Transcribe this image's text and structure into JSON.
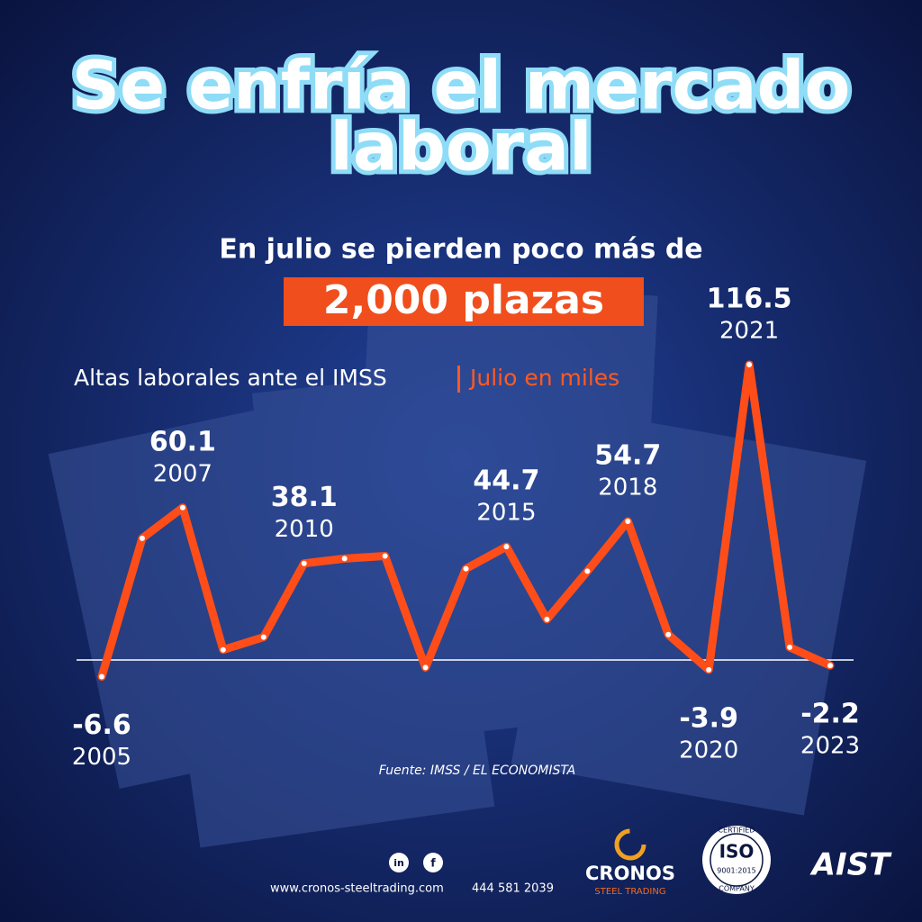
{
  "header": {
    "title_lines": [
      "Se enfría el mercado",
      "laboral"
    ],
    "subtitle": "En julio se pierden poco más de",
    "highlight": "2,000 plazas"
  },
  "chart_data": {
    "type": "line",
    "title": "Altas laborales ante el IMSS",
    "subtitle": "Julio en miles",
    "categories": [
      "2005",
      null,
      "2007",
      null,
      null,
      "2010",
      null,
      null,
      null,
      null,
      "2015",
      null,
      null,
      "2018",
      null,
      "2020",
      "2021",
      null,
      "2023"
    ],
    "values": [
      -6.6,
      48,
      60.1,
      4,
      9,
      38.1,
      40,
      41,
      -3,
      36,
      44.7,
      16,
      35,
      54.7,
      10,
      -3.9,
      116.5,
      5,
      -2.2
    ],
    "color": "#ff4d1a",
    "ylim": [
      -20,
      125
    ],
    "source": "Fuente: IMSS / EL ECONOMISTA"
  },
  "footer": {
    "social": [
      "in",
      "f"
    ],
    "website": "www.cronos-steeltrading.com",
    "phone": "444 581 2039",
    "logos": {
      "cronos": "CRONOS",
      "cronos_sub": "STEEL TRADING",
      "iso_top": "CERTIFIED",
      "iso": "ISO",
      "iso_std": "9001:2015",
      "iso_bottom": "COMPANY",
      "aist": "AIST"
    }
  }
}
